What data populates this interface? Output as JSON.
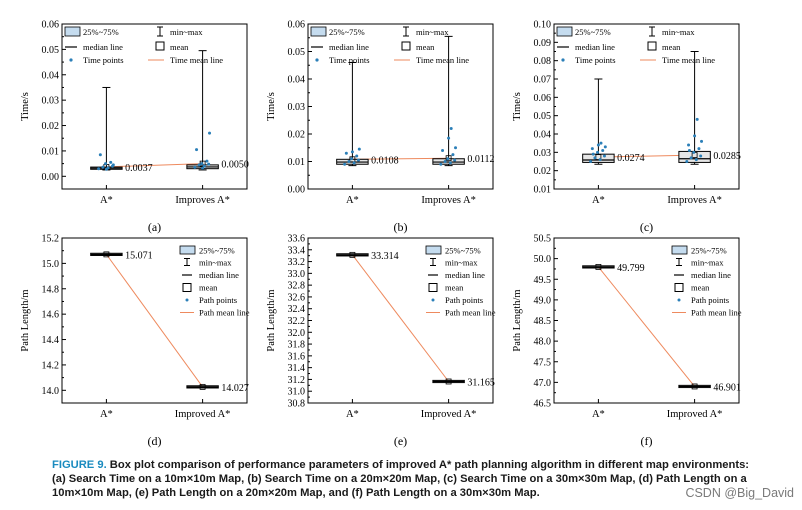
{
  "colors": {
    "box_fill": "#e6e6e6",
    "legend_box_fill": "#c5dcef",
    "mean_line": "#ee8a5e",
    "points": "#2b7fb8",
    "axis": "#000000",
    "figure_label": "#1a8bbf"
  },
  "caption": {
    "label": "FIGURE 9.",
    "text": " Box plot comparison of performance parameters of improved A* path planning algorithm in different map environments: (a) Search Time on a 10m×10m Map, (b) Search Time on a 20m×20m Map, (c) Search Time on a 30m×30m Map, (d) Path Length on a 10m×10m Map, (e) Path Length on a 20m×20m Map, and (f) Path Length on a 30m×30m Map."
  },
  "watermark": "CSDN @Big_David",
  "chart_data": [
    {
      "panel": "(a)",
      "type": "box",
      "ylabel": "Time/s",
      "ylim": [
        -0.005,
        0.06
      ],
      "yticks": [
        "0.00",
        "0.01",
        "0.02",
        "0.03",
        "0.04",
        "0.05",
        "0.06"
      ],
      "ytick_values": [
        0,
        0.01,
        0.02,
        0.03,
        0.04,
        0.05,
        0.06
      ],
      "categories": [
        "A*",
        "Improves A*"
      ],
      "boxes": [
        {
          "q1": 0.0028,
          "median": 0.0032,
          "q3": 0.0036,
          "min": 0.0025,
          "max": 0.035,
          "mean": 0.0037
        },
        {
          "q1": 0.003,
          "median": 0.0037,
          "q3": 0.0045,
          "min": 0.0025,
          "max": 0.0495,
          "mean": 0.005
        }
      ],
      "mean_labels": [
        "0.0037",
        "0.0050"
      ],
      "points": [
        [
          0.003,
          0.0033,
          0.0036,
          0.004,
          0.005,
          0.0055,
          0.0085,
          0.0045,
          0.0028
        ],
        [
          0.0035,
          0.004,
          0.0045,
          0.0048,
          0.005,
          0.006,
          0.0105,
          0.017,
          0.0032
        ]
      ],
      "legend": {
        "items": [
          "25%~75%",
          "min~max",
          "median line",
          "mean",
          "Time points",
          "Time mean line"
        ],
        "position": "top-left"
      }
    },
    {
      "panel": "(b)",
      "type": "box",
      "ylabel": "Time/s",
      "ylim": [
        0,
        0.06
      ],
      "yticks": [
        "0.00",
        "0.01",
        "0.02",
        "0.03",
        "0.04",
        "0.05",
        "0.06"
      ],
      "ytick_values": [
        0,
        0.01,
        0.02,
        0.03,
        0.04,
        0.05,
        0.06
      ],
      "categories": [
        "A*",
        "Improves A*"
      ],
      "boxes": [
        {
          "q1": 0.009,
          "median": 0.0098,
          "q3": 0.0108,
          "min": 0.0085,
          "max": 0.046,
          "mean": 0.0108
        },
        {
          "q1": 0.009,
          "median": 0.0098,
          "q3": 0.011,
          "min": 0.0085,
          "max": 0.0555,
          "mean": 0.0112
        }
      ],
      "mean_labels": [
        "0.0108",
        "0.0112"
      ],
      "points": [
        [
          0.009,
          0.0095,
          0.01,
          0.0105,
          0.011,
          0.012,
          0.013,
          0.0145,
          0.0135
        ],
        [
          0.009,
          0.0095,
          0.01,
          0.0105,
          0.011,
          0.0125,
          0.014,
          0.015,
          0.0185,
          0.022
        ]
      ],
      "legend": {
        "items": [
          "25%~75%",
          "min~max",
          "median line",
          "mean",
          "Time points",
          "Time mean line"
        ],
        "position": "top-left"
      }
    },
    {
      "panel": "(c)",
      "type": "box",
      "ylabel": "Time/s",
      "ylim": [
        0.01,
        0.1
      ],
      "yticks": [
        "0.01",
        "0.02",
        "0.03",
        "0.04",
        "0.05",
        "0.06",
        "0.07",
        "0.08",
        "0.09",
        "0.10"
      ],
      "ytick_values": [
        0.01,
        0.02,
        0.03,
        0.04,
        0.05,
        0.06,
        0.07,
        0.08,
        0.09,
        0.1
      ],
      "categories": [
        "A*",
        "Improves A*"
      ],
      "boxes": [
        {
          "q1": 0.0245,
          "median": 0.0258,
          "q3": 0.029,
          "min": 0.0235,
          "max": 0.07,
          "mean": 0.0274
        },
        {
          "q1": 0.0245,
          "median": 0.0265,
          "q3": 0.0305,
          "min": 0.0235,
          "max": 0.085,
          "mean": 0.0285
        }
      ],
      "mean_labels": [
        "0.0274",
        "0.0285"
      ],
      "points": [
        [
          0.025,
          0.026,
          0.027,
          0.028,
          0.03,
          0.031,
          0.032,
          0.033,
          0.034,
          0.035,
          0.029
        ],
        [
          0.025,
          0.026,
          0.027,
          0.028,
          0.03,
          0.032,
          0.034,
          0.036,
          0.039,
          0.048,
          0.031
        ]
      ],
      "legend": {
        "items": [
          "25%~75%",
          "min~max",
          "median line",
          "mean",
          "Time points",
          "Time mean line"
        ],
        "position": "top-left"
      }
    },
    {
      "panel": "(d)",
      "type": "box",
      "ylabel": "Path Length/m",
      "ylim": [
        13.9,
        15.2
      ],
      "yticks": [
        "14.0",
        "14.2",
        "14.4",
        "14.6",
        "14.8",
        "15.0",
        "15.2"
      ],
      "ytick_values": [
        14,
        14.2,
        14.4,
        14.6,
        14.8,
        15,
        15.2
      ],
      "categories": [
        "A*",
        "Improved A*"
      ],
      "boxes": [
        {
          "q1": 15.067,
          "median": 15.071,
          "q3": 15.075,
          "min": 15.063,
          "max": 15.079,
          "mean": 15.071
        },
        {
          "q1": 14.023,
          "median": 14.027,
          "q3": 14.031,
          "min": 14.019,
          "max": 14.035,
          "mean": 14.027
        }
      ],
      "mean_labels": [
        "15.071",
        "14.027"
      ],
      "legend": {
        "items": [
          "25%~75%",
          "min~max",
          "median line",
          "mean",
          "Path points",
          "Path mean line"
        ],
        "position": "top-right"
      }
    },
    {
      "panel": "(e)",
      "type": "box",
      "ylabel": "Path Length/m",
      "ylim": [
        30.8,
        33.6
      ],
      "yticks": [
        "30.8",
        "31.0",
        "31.2",
        "31.4",
        "31.6",
        "31.8",
        "32.0",
        "32.2",
        "32.4",
        "32.6",
        "32.8",
        "33.0",
        "33.2",
        "33.4",
        "33.6"
      ],
      "ytick_values": [
        30.8,
        31,
        31.2,
        31.4,
        31.6,
        31.8,
        32,
        32.2,
        32.4,
        32.6,
        32.8,
        33,
        33.2,
        33.4,
        33.6
      ],
      "categories": [
        "A*",
        "Improved A*"
      ],
      "boxes": [
        {
          "q1": 33.306,
          "median": 33.314,
          "q3": 33.322,
          "min": 33.3,
          "max": 33.328,
          "mean": 33.314
        },
        {
          "q1": 31.157,
          "median": 31.165,
          "q3": 31.173,
          "min": 31.151,
          "max": 31.179,
          "mean": 31.165
        }
      ],
      "mean_labels": [
        "33.314",
        "31.165"
      ],
      "legend": {
        "items": [
          "25%~75%",
          "min~max",
          "median line",
          "mean",
          "Path points",
          "Path mean line"
        ],
        "position": "top-right"
      }
    },
    {
      "panel": "(f)",
      "type": "box",
      "ylabel": "Path Length/m",
      "ylim": [
        46.5,
        50.5
      ],
      "yticks": [
        "46.5",
        "47.0",
        "47.5",
        "48.0",
        "48.5",
        "49.0",
        "49.5",
        "50.0",
        "50.5"
      ],
      "ytick_values": [
        46.5,
        47,
        47.5,
        48,
        48.5,
        49,
        49.5,
        50,
        50.5
      ],
      "categories": [
        "A*",
        "Improved A*"
      ],
      "boxes": [
        {
          "q1": 49.787,
          "median": 49.799,
          "q3": 49.811,
          "min": 49.777,
          "max": 49.821,
          "mean": 49.799
        },
        {
          "q1": 46.889,
          "median": 46.901,
          "q3": 46.913,
          "min": 46.879,
          "max": 46.923,
          "mean": 46.901
        }
      ],
      "mean_labels": [
        "49.799",
        "46.901"
      ],
      "legend": {
        "items": [
          "25%~75%",
          "min~max",
          "median line",
          "mean",
          "Path points",
          "Path mean line"
        ],
        "position": "top-right"
      }
    }
  ]
}
